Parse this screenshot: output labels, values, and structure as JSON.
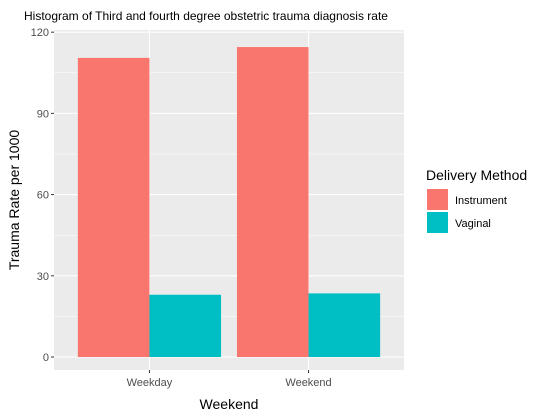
{
  "chart_data": {
    "type": "bar",
    "title": "Histogram of Third and fourth degree obstetric trauma diagnosis rate",
    "xlabel": "Weekend",
    "ylabel": "Trauma Rate per 1000",
    "categories": [
      "Weekday",
      "Weekend"
    ],
    "series": [
      {
        "name": "Instrument",
        "values": [
          110.5,
          114.5
        ],
        "color": "#F8766D"
      },
      {
        "name": "Vaginal",
        "values": [
          23,
          23.5
        ],
        "color": "#00BFC4"
      }
    ],
    "ylim": [
      -4.8,
      120.8
    ],
    "yticks": [
      0,
      30,
      60,
      90,
      120
    ],
    "grid": true,
    "panel_background": "#EBEBEB",
    "legend": {
      "title": "Delivery Method",
      "position": "right"
    }
  }
}
